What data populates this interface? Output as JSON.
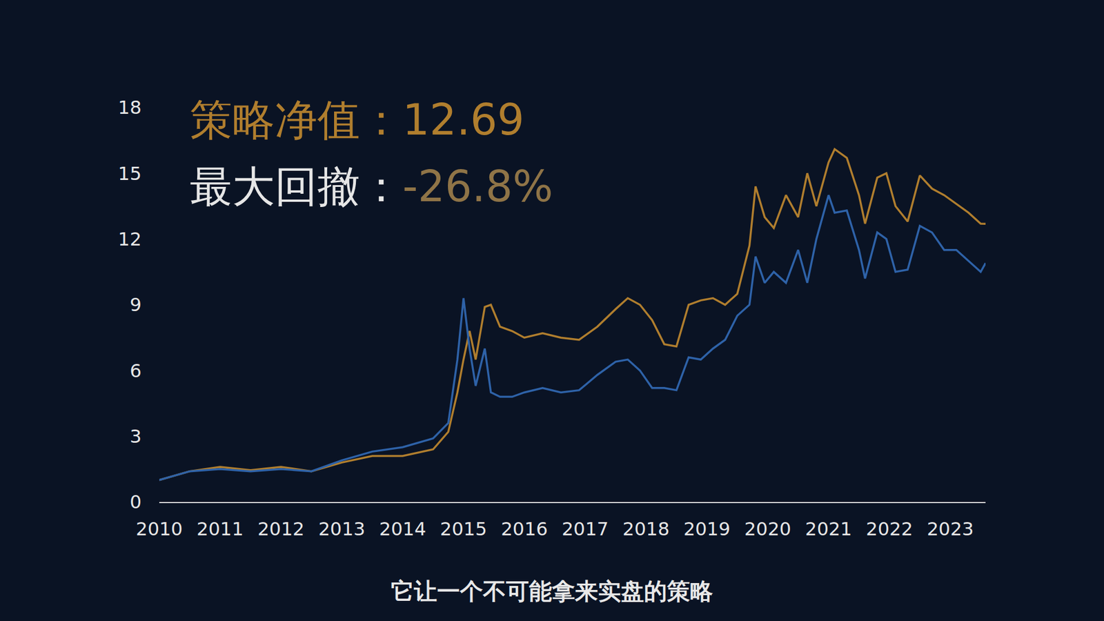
{
  "chart_data": {
    "type": "line",
    "annotations": [
      {
        "label": "策略净值：",
        "value": "12.69",
        "label_color": "#b07e2e",
        "value_color": "#b07e2e"
      },
      {
        "label": "最大回撤：",
        "value": "-26.8%",
        "label_color": "#e6e6e6",
        "value_color": "#8f7447"
      }
    ],
    "caption": "它让一个不可能拿来实盘的策略",
    "x": [
      2010.0,
      2010.5,
      2011.0,
      2011.5,
      2012.0,
      2012.5,
      2013.0,
      2013.5,
      2014.0,
      2014.5,
      2014.75,
      2014.9,
      2015.0,
      2015.1,
      2015.2,
      2015.35,
      2015.45,
      2015.6,
      2015.8,
      2016.0,
      2016.3,
      2016.6,
      2016.9,
      2017.2,
      2017.5,
      2017.7,
      2017.9,
      2018.1,
      2018.3,
      2018.5,
      2018.7,
      2018.9,
      2019.1,
      2019.3,
      2019.5,
      2019.7,
      2019.8,
      2019.95,
      2020.1,
      2020.3,
      2020.5,
      2020.65,
      2020.8,
      2021.0,
      2021.1,
      2021.3,
      2021.5,
      2021.6,
      2021.8,
      2021.95,
      2022.1,
      2022.3,
      2022.5,
      2022.7,
      2022.9,
      2023.1,
      2023.3,
      2023.5,
      2023.58
    ],
    "series": [
      {
        "color": "#b07e2e",
        "values": [
          1.0,
          1.4,
          1.6,
          1.45,
          1.6,
          1.4,
          1.8,
          2.1,
          2.1,
          2.4,
          3.2,
          5.0,
          6.5,
          7.8,
          6.5,
          8.9,
          9.0,
          8.0,
          7.8,
          7.5,
          7.7,
          7.5,
          7.4,
          8.0,
          8.8,
          9.3,
          9.0,
          8.3,
          7.2,
          7.1,
          9.0,
          9.2,
          9.3,
          9.0,
          9.5,
          11.7,
          14.4,
          13.0,
          12.5,
          14.0,
          13.0,
          15.0,
          13.5,
          15.5,
          16.1,
          15.7,
          14.0,
          12.7,
          14.8,
          15.0,
          13.5,
          12.8,
          14.9,
          14.3,
          14.0,
          13.6,
          13.2,
          12.7,
          12.69
        ]
      },
      {
        "color": "#2e62a8",
        "values": [
          1.0,
          1.4,
          1.5,
          1.4,
          1.5,
          1.4,
          1.9,
          2.3,
          2.5,
          2.9,
          3.6,
          6.5,
          9.3,
          7.0,
          5.3,
          7.0,
          5.0,
          4.8,
          4.8,
          5.0,
          5.2,
          5.0,
          5.1,
          5.8,
          6.4,
          6.5,
          6.0,
          5.2,
          5.2,
          5.1,
          6.6,
          6.5,
          7.0,
          7.4,
          8.5,
          9.0,
          11.2,
          10.0,
          10.5,
          10.0,
          11.5,
          10.0,
          12.0,
          14.0,
          13.2,
          13.3,
          11.5,
          10.2,
          12.3,
          12.0,
          10.5,
          10.6,
          12.6,
          12.3,
          11.5,
          11.5,
          11.0,
          10.5,
          10.9
        ]
      }
    ],
    "xlim": [
      2010,
      2023.58
    ],
    "xticks": [
      2010,
      2011,
      2012,
      2013,
      2014,
      2015,
      2016,
      2017,
      2018,
      2019,
      2020,
      2021,
      2022,
      2023
    ],
    "ylim": [
      0,
      18
    ],
    "yticks": [
      0,
      3,
      6,
      9,
      12,
      15,
      18
    ],
    "grid": false
  }
}
